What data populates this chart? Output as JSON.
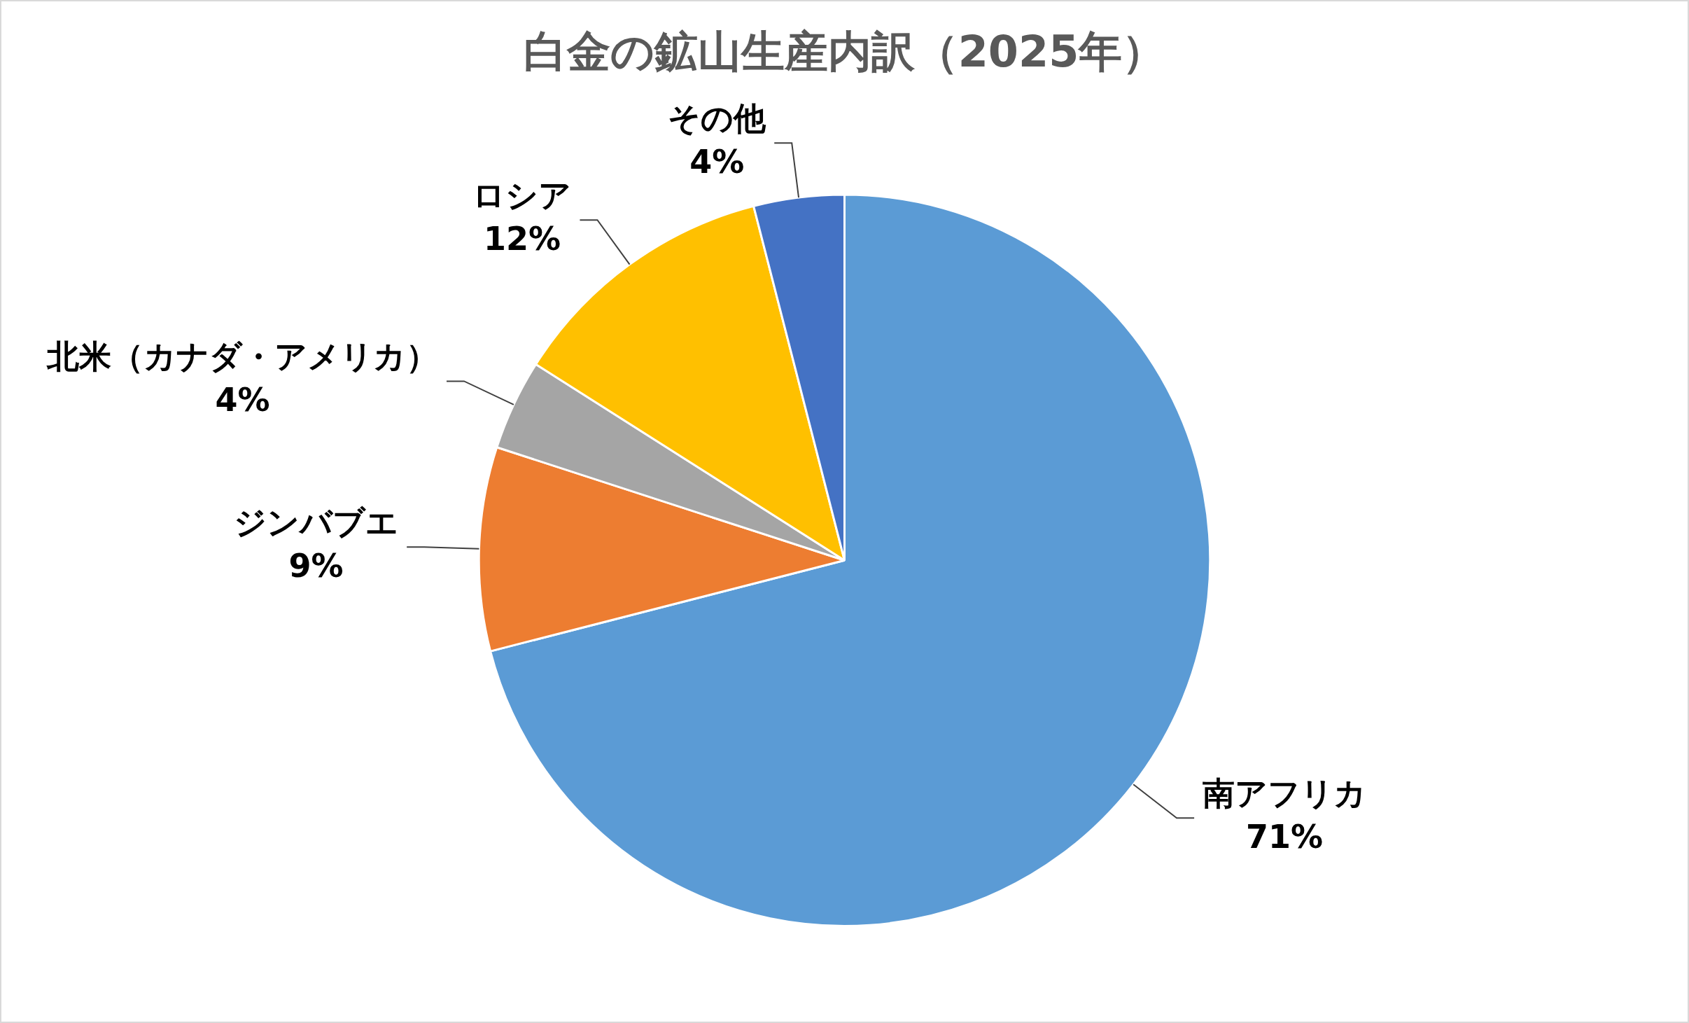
{
  "chart_data": {
    "type": "pie",
    "title": "白金の鉱山生産内訳（2025年）",
    "categories": [
      "南アフリカ",
      "ジンバブエ",
      "北米（カナダ・アメリカ）",
      "ロシア",
      "その他"
    ],
    "values": [
      71,
      9,
      4,
      12,
      4
    ],
    "colors": [
      "#5b9bd5",
      "#ed7d31",
      "#a5a5a5",
      "#ffc000",
      "#4472c4"
    ],
    "value_labels": [
      "71%",
      "9%",
      "4%",
      "12%",
      "4%"
    ],
    "legend": false
  }
}
